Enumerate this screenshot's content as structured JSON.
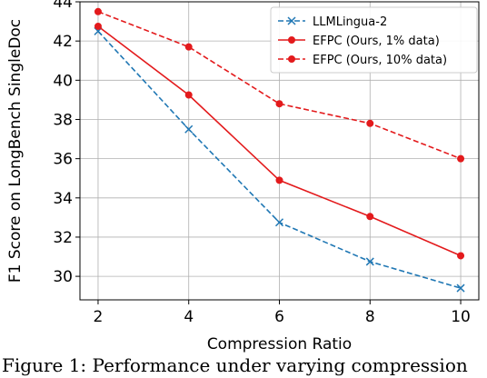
{
  "chart_data": {
    "type": "line",
    "xlabel": "Compression Ratio",
    "ylabel": "F1 Score on LongBench SingleDoc",
    "x": [
      2,
      4,
      6,
      8,
      10
    ],
    "xlim": [
      1.6,
      10.4
    ],
    "ylim": [
      28.8,
      44.0
    ],
    "xticks": [
      "2",
      "4",
      "6",
      "8",
      "10"
    ],
    "yticks": [
      "30",
      "32",
      "34",
      "36",
      "38",
      "40",
      "42",
      "44"
    ],
    "grid": true,
    "legend_position": "top-right",
    "series": [
      {
        "name": "LLMLingua-2",
        "values": [
          42.5,
          37.5,
          32.75,
          30.75,
          29.4
        ],
        "color": "#1f77b4",
        "linestyle": "dashed",
        "marker": "x"
      },
      {
        "name": "EFPC (Ours, 1% data)",
        "values": [
          42.75,
          39.25,
          34.9,
          33.05,
          31.05
        ],
        "color": "#e31a1c",
        "linestyle": "solid",
        "marker": "o"
      },
      {
        "name": "EFPC (Ours, 10% data)",
        "values": [
          43.5,
          41.7,
          38.8,
          37.8,
          36.0
        ],
        "color": "#e31a1c",
        "linestyle": "dashed",
        "marker": "o"
      }
    ]
  },
  "caption": "Figure 1: Performance under varying compression"
}
